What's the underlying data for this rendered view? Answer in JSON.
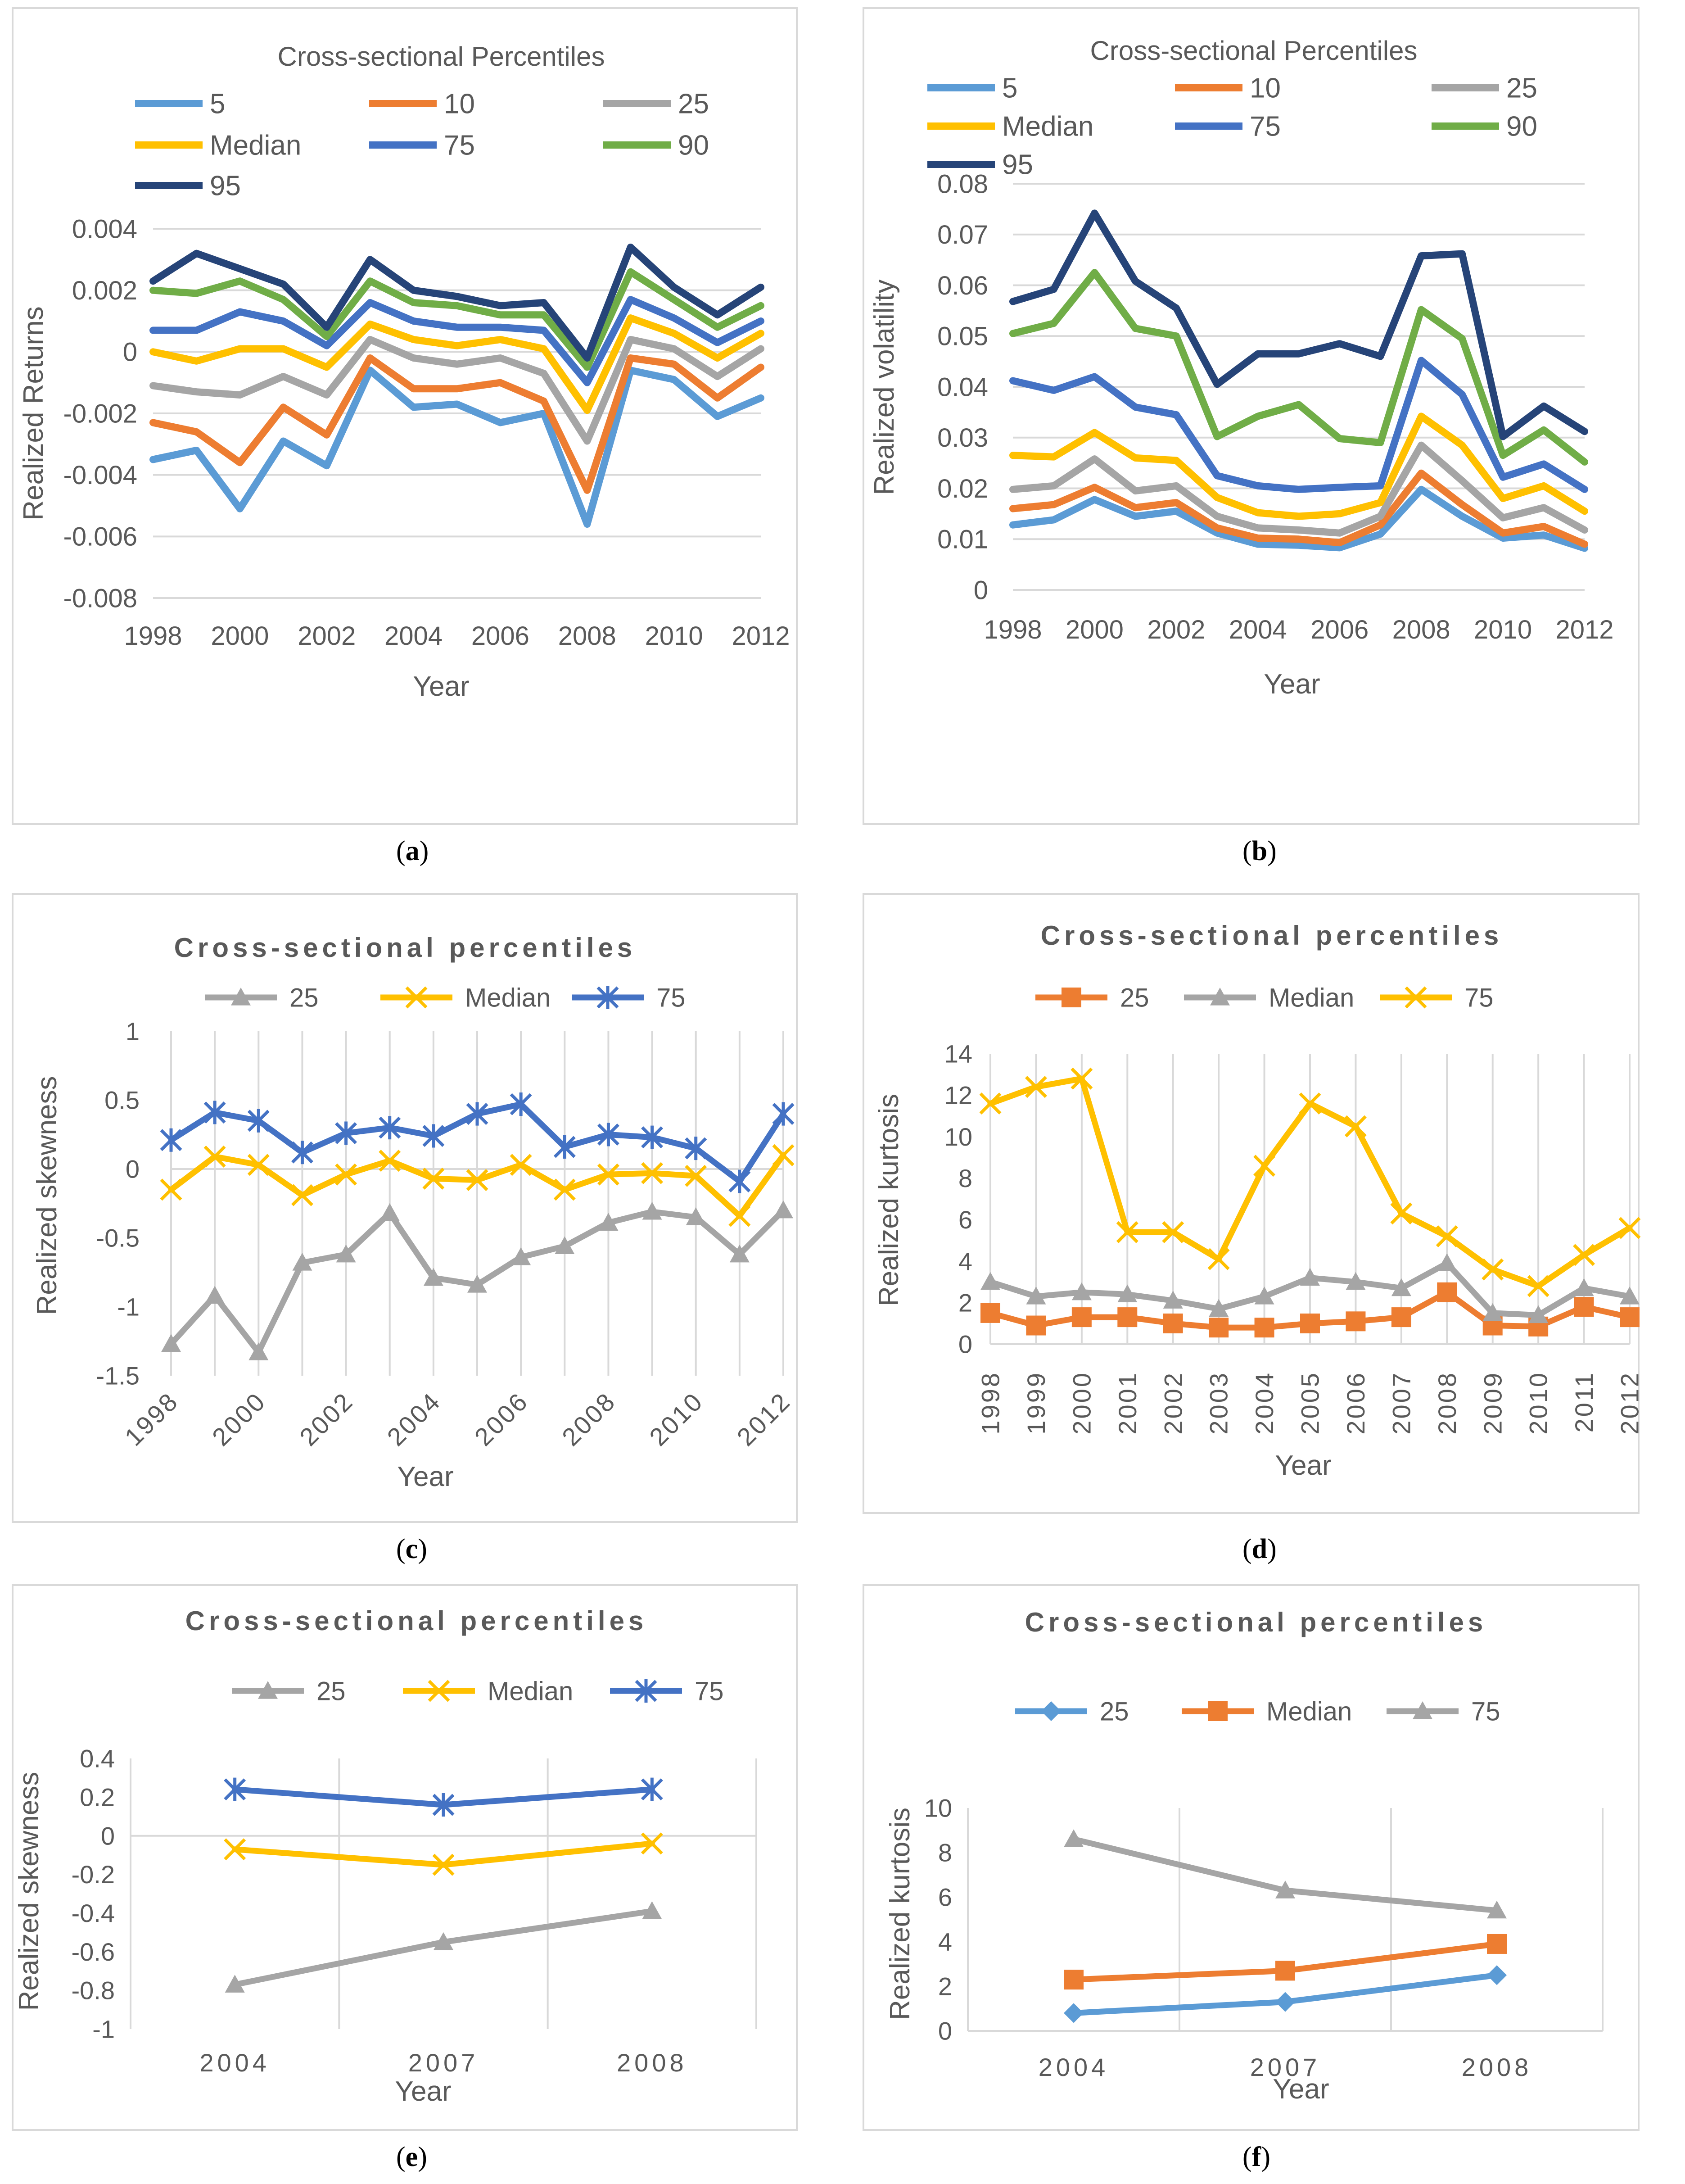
{
  "panels": [
    {
      "label": "a",
      "chart_data": {
        "type": "line",
        "title": "Cross-sectional Percentiles",
        "xlabel": "Year",
        "ylabel": "Realized Returns",
        "x": [
          1998,
          1999,
          2000,
          2001,
          2002,
          2003,
          2004,
          2005,
          2006,
          2007,
          2008,
          2009,
          2010,
          2011,
          2012
        ],
        "xticks": [
          "1998",
          "2000",
          "2002",
          "2004",
          "2006",
          "2008",
          "2010",
          "2012"
        ],
        "ylim": [
          -0.008,
          0.004
        ],
        "yticks": [
          "-0.008",
          "-0.006",
          "-0.004",
          "-0.002",
          "0",
          "0.002",
          "0.004"
        ],
        "grid": "horizontal",
        "legend": "top",
        "series": [
          {
            "name": "5",
            "color": "#5B9BD5",
            "values": [
              -0.0035,
              -0.0032,
              -0.0051,
              -0.0029,
              -0.0037,
              -0.0006,
              -0.0018,
              -0.0017,
              -0.0023,
              -0.002,
              -0.0056,
              -0.0006,
              -0.0009,
              -0.0021,
              -0.0015
            ]
          },
          {
            "name": "10",
            "color": "#ED7D31",
            "values": [
              -0.0023,
              -0.0026,
              -0.0036,
              -0.0018,
              -0.0027,
              -0.0002,
              -0.0012,
              -0.0012,
              -0.001,
              -0.0016,
              -0.0045,
              -0.0002,
              -0.0004,
              -0.0015,
              -0.0005
            ]
          },
          {
            "name": "25",
            "color": "#A5A5A5",
            "values": [
              -0.0011,
              -0.0013,
              -0.0014,
              -0.0008,
              -0.0014,
              0.0004,
              -0.0002,
              -0.0004,
              -0.0002,
              -0.0007,
              -0.0029,
              0.0004,
              0.0001,
              -0.0008,
              0.0001
            ]
          },
          {
            "name": "Median",
            "color": "#FFC000",
            "values": [
              0.0,
              -0.0003,
              0.0001,
              0.0001,
              -0.0005,
              0.0009,
              0.0004,
              0.0002,
              0.0004,
              0.0001,
              -0.0019,
              0.0011,
              0.0006,
              -0.0002,
              0.0006
            ]
          },
          {
            "name": "75",
            "color": "#4472C4",
            "values": [
              0.0007,
              0.0007,
              0.0013,
              0.001,
              0.0002,
              0.0016,
              0.001,
              0.0008,
              0.0008,
              0.0007,
              -0.001,
              0.0017,
              0.0011,
              0.0003,
              0.001
            ]
          },
          {
            "name": "90",
            "color": "#70AD47",
            "values": [
              0.002,
              0.0019,
              0.0023,
              0.0017,
              0.0005,
              0.0023,
              0.0016,
              0.0015,
              0.0012,
              0.0012,
              -0.0005,
              0.0026,
              0.0017,
              0.0008,
              0.0015
            ]
          },
          {
            "name": "95",
            "color": "#264478",
            "values": [
              0.0023,
              0.0032,
              0.0027,
              0.0022,
              0.0008,
              0.003,
              0.002,
              0.0018,
              0.0015,
              0.0016,
              -0.0002,
              0.0034,
              0.0021,
              0.0012,
              0.0021
            ]
          }
        ]
      }
    },
    {
      "label": "b",
      "chart_data": {
        "type": "line",
        "title": "Cross-sectional Percentiles",
        "xlabel": "Year",
        "ylabel": "Realized volatility",
        "x": [
          1998,
          1999,
          2000,
          2001,
          2002,
          2003,
          2004,
          2005,
          2006,
          2007,
          2008,
          2009,
          2010,
          2011,
          2012
        ],
        "xticks": [
          "1998",
          "2000",
          "2002",
          "2004",
          "2006",
          "2008",
          "2010",
          "2012"
        ],
        "ylim": [
          0,
          0.08
        ],
        "yticks": [
          "0",
          "0.01",
          "0.02",
          "0.03",
          "0.04",
          "0.05",
          "0.06",
          "0.07",
          "0.08"
        ],
        "grid": "horizontal",
        "legend": "top",
        "series": [
          {
            "name": "5",
            "color": "#5B9BD5",
            "values": [
              0.0128,
              0.0138,
              0.0178,
              0.0145,
              0.0155,
              0.0112,
              0.009,
              0.0088,
              0.0083,
              0.011,
              0.0198,
              0.0145,
              0.0102,
              0.0108,
              0.0082
            ]
          },
          {
            "name": "10",
            "color": "#ED7D31",
            "values": [
              0.016,
              0.0168,
              0.0202,
              0.0162,
              0.0172,
              0.0122,
              0.0102,
              0.01,
              0.0093,
              0.0128,
              0.023,
              0.0168,
              0.0112,
              0.0125,
              0.009
            ]
          },
          {
            "name": "25",
            "color": "#A5A5A5",
            "values": [
              0.0198,
              0.0205,
              0.0258,
              0.0195,
              0.0205,
              0.0145,
              0.0122,
              0.0118,
              0.0112,
              0.0145,
              0.0285,
              0.0215,
              0.0142,
              0.0162,
              0.0118
            ]
          },
          {
            "name": "Median",
            "color": "#FFC000",
            "values": [
              0.0265,
              0.0262,
              0.031,
              0.026,
              0.0255,
              0.0182,
              0.0152,
              0.0145,
              0.015,
              0.0172,
              0.0342,
              0.0285,
              0.018,
              0.0205,
              0.0155
            ]
          },
          {
            "name": "75",
            "color": "#4472C4",
            "values": [
              0.0412,
              0.0393,
              0.042,
              0.036,
              0.0345,
              0.0225,
              0.0205,
              0.0198,
              0.0202,
              0.0205,
              0.0452,
              0.0385,
              0.0222,
              0.0248,
              0.0198
            ]
          },
          {
            "name": "90",
            "color": "#70AD47",
            "values": [
              0.0505,
              0.0525,
              0.0625,
              0.0515,
              0.05,
              0.0302,
              0.0342,
              0.0365,
              0.0298,
              0.029,
              0.0552,
              0.0495,
              0.0265,
              0.0315,
              0.0252
            ]
          },
          {
            "name": "95",
            "color": "#264478",
            "values": [
              0.0568,
              0.0592,
              0.0742,
              0.0608,
              0.0555,
              0.0405,
              0.0465,
              0.0465,
              0.0485,
              0.046,
              0.0658,
              0.0662,
              0.0302,
              0.0362,
              0.0312
            ]
          }
        ]
      }
    },
    {
      "label": "c",
      "chart_data": {
        "type": "line",
        "title": "Cross-sectional percentiles",
        "xlabel": "Year",
        "ylabel": "Realized skewness",
        "x": [
          1998,
          1999,
          2000,
          2001,
          2002,
          2003,
          2004,
          2005,
          2006,
          2007,
          2008,
          2009,
          2010,
          2011,
          2012
        ],
        "xticks": [
          "1998",
          "2000",
          "2002",
          "2004",
          "2006",
          "2008",
          "2010",
          "2012"
        ],
        "ylim": [
          -1.5,
          1
        ],
        "yticks": [
          "-1.5",
          "-1",
          "-0.5",
          "0",
          "0.5",
          "1"
        ],
        "grid": "vertical",
        "legend": "top",
        "series": [
          {
            "name": "25",
            "color": "#A5A5A5",
            "marker": "triangle",
            "values": [
              -1.27,
              -0.92,
              -1.33,
              -0.68,
              -0.62,
              -0.32,
              -0.79,
              -0.84,
              -0.64,
              -0.56,
              -0.39,
              -0.31,
              -0.35,
              -0.62,
              -0.3
            ]
          },
          {
            "name": "Median",
            "color": "#FFC000",
            "marker": "x",
            "values": [
              -0.15,
              0.09,
              0.03,
              -0.19,
              -0.04,
              0.06,
              -0.07,
              -0.08,
              0.03,
              -0.15,
              -0.04,
              -0.03,
              -0.05,
              -0.34,
              0.1
            ]
          },
          {
            "name": "75",
            "color": "#4472C4",
            "marker": "star",
            "values": [
              0.21,
              0.41,
              0.35,
              0.12,
              0.26,
              0.3,
              0.24,
              0.4,
              0.47,
              0.16,
              0.25,
              0.23,
              0.15,
              -0.09,
              0.4
            ]
          }
        ]
      }
    },
    {
      "label": "d",
      "chart_data": {
        "type": "line",
        "title": "Cross-sectional percentiles",
        "xlabel": "Year",
        "ylabel": "Realized kurtosis",
        "x": [
          1998,
          1999,
          2000,
          2001,
          2002,
          2003,
          2004,
          2005,
          2006,
          2007,
          2008,
          2009,
          2010,
          2011,
          2012
        ],
        "xticks": [
          "1998",
          "1999",
          "2000",
          "2001",
          "2002",
          "2003",
          "2004",
          "2005",
          "2006",
          "2007",
          "2008",
          "2009",
          "2010",
          "2011",
          "2012"
        ],
        "ylim": [
          0,
          14
        ],
        "yticks": [
          "0",
          "2",
          "4",
          "6",
          "8",
          "10",
          "12",
          "14"
        ],
        "grid": "vertical",
        "legend": "top",
        "series": [
          {
            "name": "25",
            "color": "#ED7D31",
            "marker": "square",
            "values": [
              1.5,
              0.9,
              1.3,
              1.3,
              1.0,
              0.8,
              0.8,
              1.0,
              1.1,
              1.3,
              2.5,
              0.9,
              0.85,
              1.8,
              1.3
            ]
          },
          {
            "name": "Median",
            "color": "#A5A5A5",
            "marker": "triangle",
            "values": [
              3.0,
              2.3,
              2.5,
              2.4,
              2.1,
              1.7,
              2.3,
              3.2,
              3.0,
              2.7,
              3.9,
              1.5,
              1.4,
              2.7,
              2.3
            ]
          },
          {
            "name": "75",
            "color": "#FFC000",
            "marker": "x",
            "values": [
              11.6,
              12.4,
              12.8,
              5.4,
              5.4,
              4.1,
              8.6,
              11.6,
              10.5,
              6.3,
              5.2,
              3.6,
              2.8,
              4.3,
              5.6
            ]
          }
        ]
      }
    },
    {
      "label": "e",
      "chart_data": {
        "type": "line",
        "title": "Cross-sectional percentiles",
        "xlabel": "Year",
        "ylabel": "Realized skewness",
        "categories": [
          "2004",
          "2007",
          "2008"
        ],
        "ylim": [
          -1,
          0.4
        ],
        "yticks": [
          "-1",
          "-0.8",
          "-0.6",
          "-0.4",
          "-0.2",
          "0",
          "0.2",
          "0.4"
        ],
        "grid": "vertical",
        "legend": "top",
        "series": [
          {
            "name": "25",
            "color": "#A5A5A5",
            "marker": "triangle",
            "values": [
              -0.77,
              -0.55,
              -0.39
            ]
          },
          {
            "name": "Median",
            "color": "#FFC000",
            "marker": "x",
            "values": [
              -0.07,
              -0.15,
              -0.04
            ]
          },
          {
            "name": "75",
            "color": "#4472C4",
            "marker": "star",
            "values": [
              0.24,
              0.16,
              0.24
            ]
          }
        ]
      }
    },
    {
      "label": "f",
      "chart_data": {
        "type": "line",
        "title": "Cross-sectional percentiles",
        "xlabel": "Year",
        "ylabel": "Realized kurtosis",
        "categories": [
          "2004",
          "2007",
          "2008"
        ],
        "ylim": [
          0,
          10
        ],
        "yticks": [
          "0",
          "2",
          "4",
          "6",
          "8",
          "10"
        ],
        "grid": "vertical",
        "legend": "top",
        "series": [
          {
            "name": "25",
            "color": "#5B9BD5",
            "marker": "diamond",
            "values": [
              0.8,
              1.3,
              2.5
            ]
          },
          {
            "name": "Median",
            "color": "#ED7D31",
            "marker": "square",
            "values": [
              2.3,
              2.7,
              3.9
            ]
          },
          {
            "name": "75",
            "color": "#A5A5A5",
            "marker": "triangle",
            "values": [
              8.6,
              6.3,
              5.4
            ]
          }
        ]
      }
    }
  ]
}
